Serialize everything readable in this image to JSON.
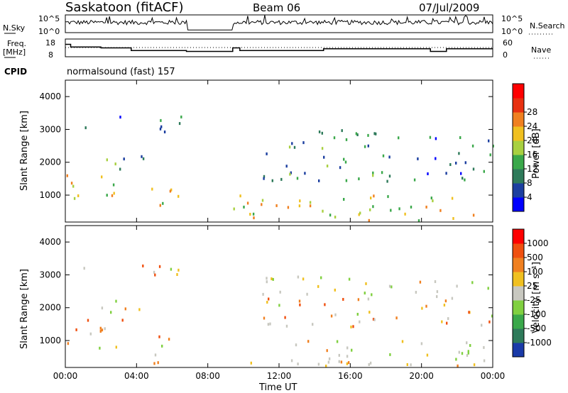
{
  "header": {
    "station": "Saskatoon (fitACF)",
    "beam": "Beam 06",
    "date": "07/Jul/2009"
  },
  "strip_nsky": {
    "left_label": "N.Sky",
    "left_ticks": [
      "10^5",
      "10^0"
    ],
    "right_ticks": [
      "10^5",
      "10^0"
    ],
    "right_label": "N.Search"
  },
  "strip_freq": {
    "left_label_1": "Freq.",
    "left_label_2": "[MHz]",
    "left_ticks": [
      "18",
      "8"
    ],
    "right_ticks": [
      "60",
      "0"
    ],
    "right_label": "Nave"
  },
  "cpid": {
    "label": "CPID",
    "value": "normalsound (fast) 157"
  },
  "chart_data": [
    {
      "type": "heatmap",
      "name": "power",
      "ylabel": "Slant Range [km]",
      "xlabel": "",
      "yticks": [
        "1000",
        "2000",
        "3000",
        "4000"
      ],
      "xticks": [
        "00:00",
        "04:00",
        "08:00",
        "12:00",
        "16:00",
        "20:00",
        "00:00"
      ],
      "ylim": [
        180,
        4500
      ],
      "xlim_hours": [
        0,
        24
      ],
      "colorbar": {
        "label": "Power [dB]",
        "ticks": [
          "4",
          "8",
          "12",
          "16",
          "20",
          "24",
          "28"
        ],
        "colors": [
          "#0000ff",
          "#1c3fa0",
          "#2e7a5a",
          "#3aa84a",
          "#a8d040",
          "#f0c020",
          "#f08020",
          "#e83010",
          "#ff0000"
        ]
      },
      "data_gap_hours": [
        6.8,
        9.4
      ],
      "echo_regions": [
        {
          "t": [
            0,
            3.0
          ],
          "range": [
            700,
            1700
          ],
          "level": "high"
        },
        {
          "t": [
            0.8,
            1.3
          ],
          "range": [
            2800,
            3400
          ],
          "level": "medium"
        },
        {
          "t": [
            2.0,
            4.5
          ],
          "range": [
            1600,
            2300
          ],
          "level": "medium"
        },
        {
          "t": [
            3.0,
            6.5
          ],
          "range": [
            2800,
            3400
          ],
          "level": "low"
        },
        {
          "t": [
            4.5,
            6.5
          ],
          "range": [
            300,
            1200
          ],
          "level": "high"
        },
        {
          "t": [
            9.4,
            24
          ],
          "range": [
            200,
            1000
          ],
          "level": "high"
        },
        {
          "t": [
            11.0,
            19.0
          ],
          "range": [
            1400,
            3000
          ],
          "level": "medium"
        },
        {
          "t": [
            19.5,
            24
          ],
          "range": [
            1400,
            2800
          ],
          "level": "low"
        }
      ]
    },
    {
      "type": "heatmap",
      "name": "velocity",
      "ylabel": "Slant Range [km]",
      "xlabel": "Time UT",
      "yticks": [
        "1000",
        "2000",
        "3000",
        "4000"
      ],
      "xticks": [
        "00:00",
        "04:00",
        "08:00",
        "12:00",
        "16:00",
        "20:00",
        "00:00"
      ],
      "ylim": [
        180,
        4500
      ],
      "xlim_hours": [
        0,
        24
      ],
      "colorbar": {
        "label": "Velocity [m s⁻¹]",
        "ticks": [
          "1000",
          "500",
          "100",
          "25",
          "-25",
          "-100",
          "-500",
          "-1000"
        ],
        "colors": [
          "#1a3aa8",
          "#2e7a5a",
          "#3aa84a",
          "#80d040",
          "#c8c8c0",
          "#f0c020",
          "#f08020",
          "#f05010",
          "#ff0000"
        ]
      },
      "data_gap_hours": [
        6.8,
        9.4
      ]
    }
  ]
}
